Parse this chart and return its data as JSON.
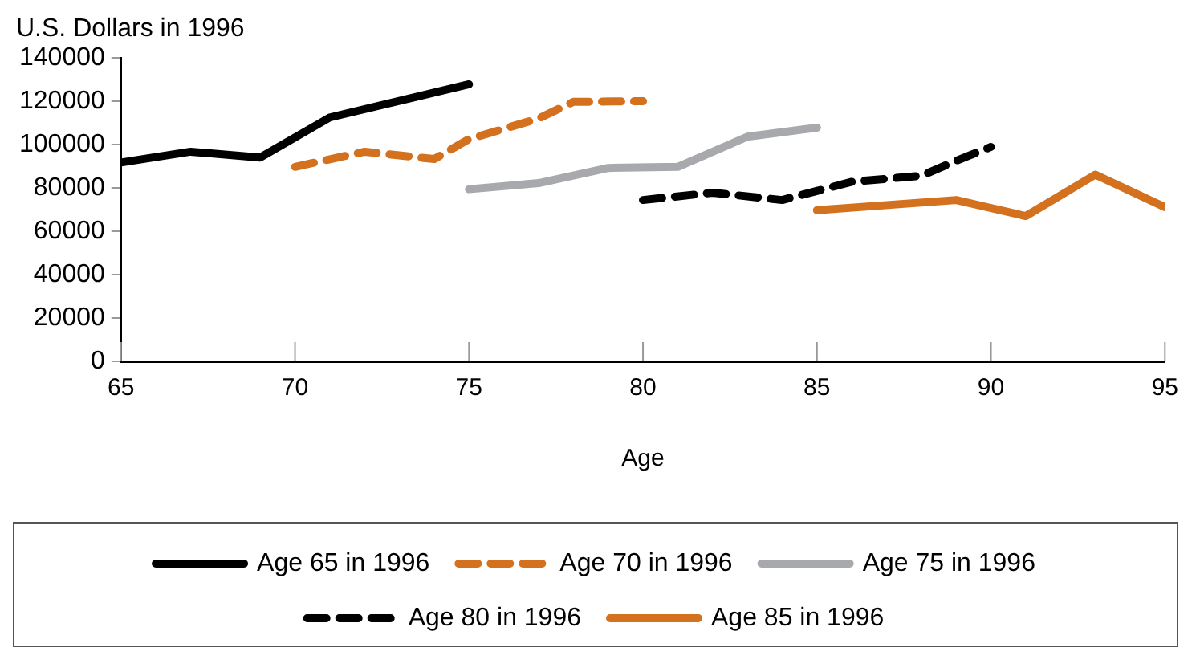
{
  "chart_data": {
    "type": "line",
    "ylabel": "U.S. Dollars in 1996",
    "xlabel": "Age",
    "xlim": [
      65,
      95
    ],
    "xticks": [
      65,
      70,
      75,
      80,
      85,
      90,
      95
    ],
    "ylim": [
      0,
      140000
    ],
    "yticks": [
      0,
      20000,
      40000,
      60000,
      80000,
      100000,
      120000,
      140000
    ],
    "grid": false,
    "legend": "bottom",
    "marker": "none",
    "series": [
      {
        "name": "Age 65 in 1996",
        "color": "#000000",
        "line_style": "solid",
        "x": [
          65,
          67,
          69,
          71,
          75
        ],
        "values": [
          91700,
          96700,
          94000,
          112500,
          127800
        ]
      },
      {
        "name": "Age 70 in 1996",
        "color": "#d4711f",
        "line_style": "dashed",
        "x": [
          70,
          72,
          74,
          75,
          77,
          78,
          80
        ],
        "values": [
          89700,
          96700,
          93300,
          102500,
          112000,
          119700,
          120000
        ]
      },
      {
        "name": "Age 75 in 1996",
        "color": "#a8a9ad",
        "line_style": "solid",
        "x": [
          75,
          77,
          79,
          81,
          83,
          85
        ],
        "values": [
          79400,
          82200,
          89200,
          89700,
          103600,
          107800
        ]
      },
      {
        "name": "Age 80 in 1996",
        "color": "#000000",
        "line_style": "dashed",
        "x": [
          80,
          82,
          84,
          86,
          88,
          89,
          90
        ],
        "values": [
          74400,
          77800,
          74400,
          82800,
          85600,
          92500,
          98900
        ]
      },
      {
        "name": "Age 85 in 1996",
        "color": "#d4711f",
        "line_style": "solid",
        "x": [
          85,
          89,
          91,
          93,
          95
        ],
        "values": [
          69700,
          74400,
          67000,
          86100,
          71100
        ]
      }
    ]
  }
}
